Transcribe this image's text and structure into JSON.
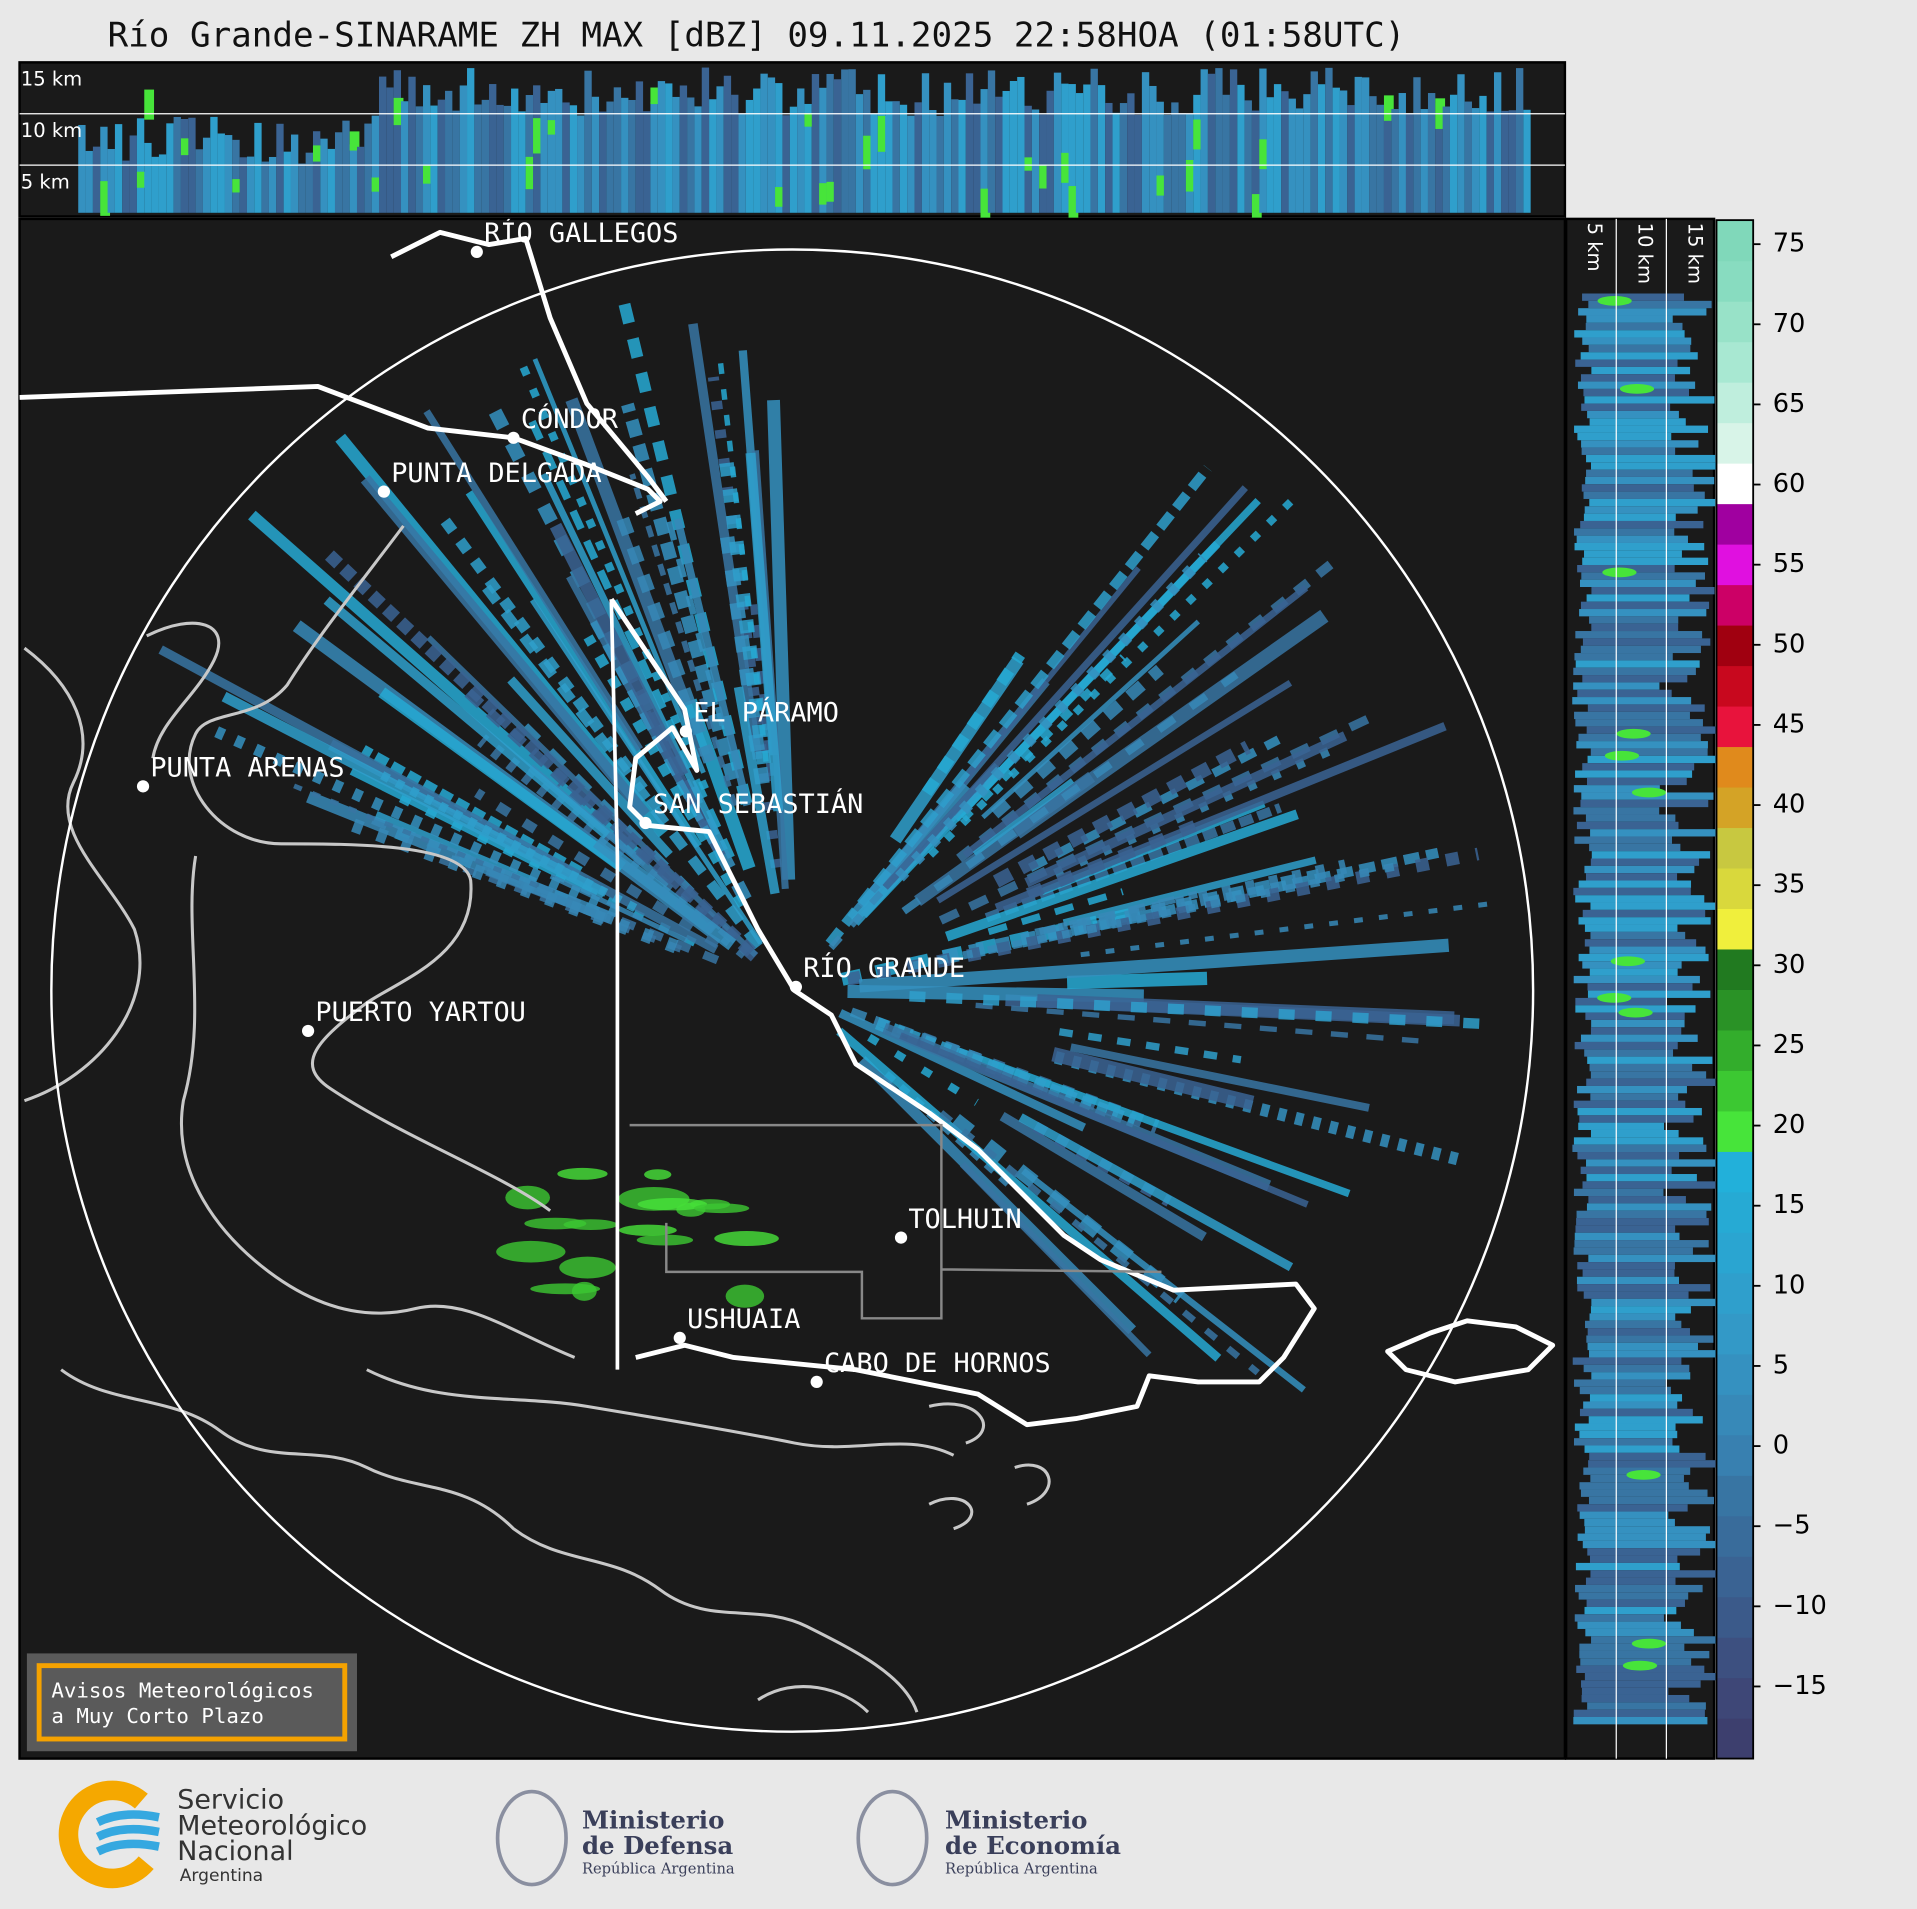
{
  "title": "Río Grande-SINARAME ZH MAX [dBZ] 09.11.2025 22:58HOA (01:58UTC)",
  "top_panel": {
    "height_labels": [
      "15 km",
      "10 km",
      "5 km"
    ]
  },
  "side_panel": {
    "height_labels": [
      "5 km",
      "10 km",
      "15 km"
    ]
  },
  "cities": [
    "RÍO GALLEGOS",
    "CÓNDOR",
    "PUNTA DELGADA",
    "EL PÁRAMO",
    "PUNTA ARENAS",
    "SAN SEBASTIÁN",
    "RÍO GRANDE",
    "PUERTO YARTOU",
    "TOLHUIN",
    "USHUAIA",
    "CABO DE HORNOS"
  ],
  "notice": [
    "Avisos Meteorológicos",
    "a Muy Corto Plazo"
  ],
  "colorbar": {
    "lim": [
      -19.5,
      76.5
    ],
    "ticks": [
      {
        "value": -15,
        "label": "−15"
      },
      {
        "value": -10,
        "label": "−10"
      },
      {
        "value": -5,
        "label": "−5"
      },
      0,
      5,
      10,
      15,
      20,
      25,
      30,
      35,
      40,
      45,
      50,
      55,
      60,
      65,
      70,
      75
    ],
    "colors": [
      "#3d3f6e",
      "#3e4777",
      "#3d5080",
      "#3b5a8a",
      "#3a6393",
      "#396c9b",
      "#3875a3",
      "#3880b0",
      "#3789b8",
      "#3591c0",
      "#3399c7",
      "#2f9fcc",
      "#2aa5d1",
      "#26aad4",
      "#22b0da",
      "#47e43a",
      "#3cc832",
      "#33ad2c",
      "#2a9226",
      "#217a20",
      "#f0ef3c",
      "#d9d83c",
      "#c8c840",
      "#d4a326",
      "#e08a1c",
      "#e8133c",
      "#c8081e",
      "#a00010",
      "#cc0066",
      "#e010e0",
      "#a000a0",
      "#ffffff",
      "#d8f4e8",
      "#bfeedd",
      "#a8e8d2",
      "#98e2c8",
      "#88dcc0",
      "#80d8ba"
    ]
  },
  "footer": {
    "smn": [
      "Servicio",
      "Meteorológico",
      "Nacional",
      "Argentina"
    ],
    "defensa": [
      "Ministerio",
      "de Defensa",
      "República Argentina"
    ],
    "economia": [
      "Ministerio",
      "de Economía",
      "República Argentina"
    ]
  }
}
